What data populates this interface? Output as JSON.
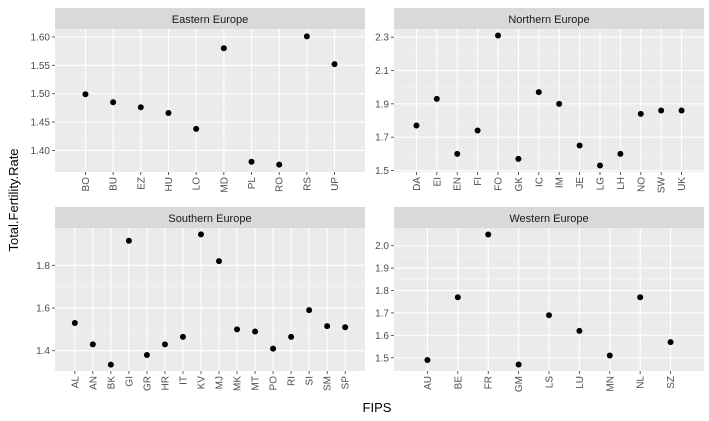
{
  "chart_data": {
    "type": "scatter",
    "xlabel": "FIPS",
    "ylabel": "Total.Fertility.Rate",
    "panels": [
      {
        "name": "Eastern Europe",
        "categories": [
          "BO",
          "BU",
          "EZ",
          "HU",
          "LO",
          "MD",
          "PL",
          "RO",
          "RS",
          "UP"
        ],
        "values": [
          1.499,
          1.485,
          1.476,
          1.466,
          1.438,
          1.58,
          1.38,
          1.375,
          1.601,
          1.552
        ],
        "y_ticks": [
          "1.40",
          "1.45",
          "1.50",
          "1.55",
          "1.60"
        ],
        "ylim": [
          1.362,
          1.614
        ]
      },
      {
        "name": "Northern Europe",
        "categories": [
          "DA",
          "EI",
          "EN",
          "FI",
          "FO",
          "GK",
          "IC",
          "IM",
          "JE",
          "LG",
          "LH",
          "NO",
          "SW",
          "UK"
        ],
        "values": [
          1.77,
          1.93,
          1.6,
          1.74,
          2.31,
          1.57,
          1.97,
          1.9,
          1.65,
          1.53,
          1.6,
          1.84,
          1.86,
          1.86
        ],
        "y_ticks": [
          "1.5",
          "1.7",
          "1.9",
          "2.1",
          "2.3"
        ],
        "ylim": [
          1.491,
          2.349
        ]
      },
      {
        "name": "Southern Europe",
        "categories": [
          "AL",
          "AN",
          "BK",
          "GI",
          "GR",
          "HR",
          "IT",
          "KV",
          "MJ",
          "MK",
          "MT",
          "PO",
          "RI",
          "SI",
          "SM",
          "SP"
        ],
        "values": [
          1.53,
          1.43,
          1.335,
          1.915,
          1.38,
          1.43,
          1.465,
          1.945,
          1.82,
          1.5,
          1.49,
          1.41,
          1.465,
          1.59,
          1.515,
          1.51
        ],
        "y_ticks": [
          "1.4",
          "1.6",
          "1.8"
        ],
        "ylim": [
          1.305,
          1.975
        ]
      },
      {
        "name": "Western Europe",
        "categories": [
          "AU",
          "BE",
          "FR",
          "GM",
          "LS",
          "LU",
          "MN",
          "NL",
          "SZ"
        ],
        "values": [
          1.49,
          1.77,
          2.05,
          1.47,
          1.69,
          1.62,
          1.51,
          1.77,
          1.57
        ],
        "y_ticks": [
          "1.5",
          "1.6",
          "1.7",
          "1.8",
          "1.9",
          "2.0"
        ],
        "ylim": [
          1.441,
          2.079
        ]
      }
    ],
    "colors": {
      "panel_bg": "#ebebeb",
      "strip_bg": "#d9d9d9",
      "grid_major": "#ffffff",
      "grid_minor": "#f5f5f5",
      "point": "#000000"
    },
    "grid": true,
    "legend": "none"
  }
}
